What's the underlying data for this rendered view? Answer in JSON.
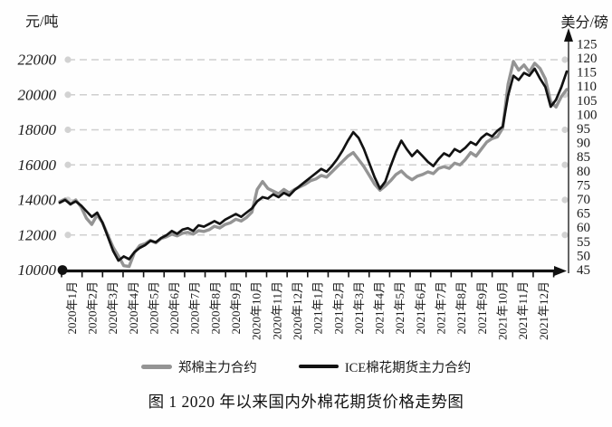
{
  "figure": {
    "caption": "图 1 2020 年以来国内外棉花期货价格走势图"
  },
  "chart_data": {
    "type": "line",
    "title": "2020年以来国内外棉花期货价格走势图",
    "grid": "horizontal-dashed",
    "legend_position": "bottom",
    "colors": {
      "grid": "#cfcfcf",
      "axis": "#111111",
      "grid_dot": "#d2d2d2"
    },
    "left_axis": {
      "label": "元/吨",
      "min": 10000,
      "max": 22000,
      "step": 2000,
      "ticks": [
        22000,
        20000,
        18000,
        16000,
        14000,
        12000,
        10000
      ]
    },
    "right_axis": {
      "label": "美分/磅",
      "min": 45,
      "max": 125,
      "step": 5,
      "ticks": [
        125,
        120,
        115,
        110,
        105,
        100,
        95,
        90,
        85,
        80,
        75,
        70,
        65,
        60,
        55,
        50,
        45
      ]
    },
    "x_axis": {
      "categories": [
        "2020年1月",
        "2020年2月",
        "2020年3月",
        "2020年4月",
        "2020年5月",
        "2020年6月",
        "2020年7月",
        "2020年8月",
        "2020年9月",
        "2020年10月",
        "2020年11月",
        "2020年12月",
        "2021年1月",
        "2021年2月",
        "2021年3月",
        "2021年4月",
        "2021年5月",
        "2021年6月",
        "2021年7月",
        "2021年8月",
        "2021年9月",
        "2021年10月",
        "2021年11月",
        "2021年12月"
      ],
      "points_per_month": 4
    },
    "series": [
      {
        "name": "郑棉主力合约",
        "axis": "left",
        "unit": "元/吨",
        "color": "#949494",
        "values": [
          13900,
          14050,
          13750,
          14000,
          13600,
          12950,
          12600,
          13150,
          12700,
          12000,
          11300,
          10800,
          10250,
          10200,
          11000,
          11400,
          11500,
          11700,
          11550,
          11800,
          11900,
          12050,
          11950,
          12100,
          12150,
          12050,
          12250,
          12200,
          12300,
          12500,
          12400,
          12600,
          12700,
          12900,
          12800,
          13000,
          13300,
          14600,
          15050,
          14650,
          14500,
          14350,
          14600,
          14400,
          14600,
          14750,
          14900,
          15100,
          15200,
          15400,
          15300,
          15600,
          15900,
          16200,
          16500,
          16700,
          16300,
          15900,
          15400,
          14900,
          14550,
          14800,
          15100,
          15450,
          15650,
          15350,
          15150,
          15350,
          15450,
          15600,
          15500,
          15800,
          15900,
          15800,
          16100,
          16000,
          16300,
          16700,
          16500,
          16900,
          17300,
          17500,
          17600,
          18100,
          20600,
          21900,
          21400,
          21700,
          21300,
          21800,
          21500,
          20900,
          19600,
          19300,
          19900,
          20300
        ]
      },
      {
        "name": "ICE棉花期货主力合约",
        "axis": "right",
        "unit": "美分/磅",
        "color": "#121212",
        "values": [
          69,
          70,
          68.5,
          69.5,
          68,
          66,
          64,
          65.5,
          62,
          57,
          52,
          48.5,
          50,
          49,
          51.5,
          53,
          54,
          55.5,
          55,
          56.5,
          57.5,
          59,
          58,
          59.5,
          60,
          59,
          61,
          60.5,
          61.5,
          62.5,
          61.5,
          63,
          64,
          65,
          64,
          65.5,
          67,
          69.5,
          71,
          70.5,
          72,
          71,
          72.5,
          71.5,
          73.5,
          75,
          76.5,
          78,
          79.5,
          81,
          80,
          82,
          84.5,
          87.5,
          91,
          94,
          92,
          88,
          83,
          78,
          74,
          76.5,
          82,
          87,
          91,
          88,
          85.5,
          87.5,
          85.5,
          83.5,
          82,
          84.5,
          86.5,
          85.5,
          88,
          87,
          88.5,
          90.5,
          89.5,
          92,
          93.5,
          92.5,
          94.5,
          96,
          107,
          114,
          112.5,
          115,
          114,
          116.5,
          113,
          110,
          103,
          105.5,
          110,
          115.5
        ]
      }
    ]
  }
}
